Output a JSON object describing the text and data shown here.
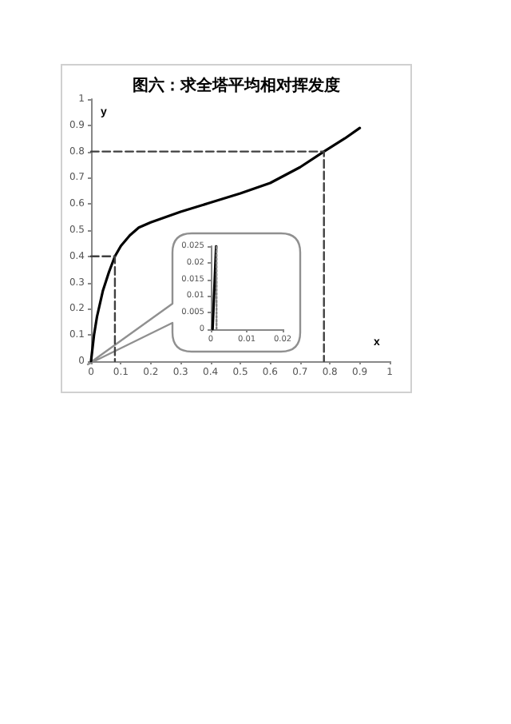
{
  "chart_data": [
    {
      "type": "line",
      "title": "图六：求全塔平均相对挥发度",
      "xlabel": "x",
      "ylabel": "y",
      "xlim": [
        0,
        1
      ],
      "ylim": [
        0,
        1
      ],
      "xticks": [
        0,
        0.1,
        0.2,
        0.3,
        0.4,
        0.5,
        0.6,
        0.7,
        0.8,
        0.9,
        1
      ],
      "yticks": [
        0,
        0.1,
        0.2,
        0.3,
        0.4,
        0.5,
        0.6,
        0.7,
        0.8,
        0.9,
        1
      ],
      "grid": false,
      "marker": "none",
      "series": [
        {
          "color": "#000000",
          "line_style": "solid",
          "x": [
            0,
            0.01,
            0.02,
            0.04,
            0.06,
            0.08,
            0.1,
            0.13,
            0.16,
            0.2,
            0.3,
            0.4,
            0.5,
            0.6,
            0.7,
            0.78,
            0.85,
            0.9
          ],
          "values": [
            0,
            0.1,
            0.17,
            0.27,
            0.34,
            0.4,
            0.44,
            0.48,
            0.51,
            0.53,
            0.57,
            0.605,
            0.64,
            0.68,
            0.74,
            0.8,
            0.85,
            0.89
          ]
        },
        {
          "color": "#404040",
          "line_style": "dashed",
          "x": [
            0,
            0.78,
            0.78
          ],
          "values": [
            0.8,
            0.8,
            0
          ]
        },
        {
          "color": "#404040",
          "line_style": "dashed",
          "x": [
            0,
            0.08,
            0.08
          ],
          "values": [
            0.4,
            0.4,
            0
          ]
        }
      ]
    },
    {
      "type": "line",
      "xlim": [
        0,
        0.02
      ],
      "ylim": [
        0,
        0.025
      ],
      "xticks": [
        0,
        0.01,
        0.02
      ],
      "yticks": [
        0,
        0.005,
        0.01,
        0.015,
        0.02,
        0.025
      ],
      "grid": false,
      "marker": "none",
      "series": [
        {
          "color": "#000000",
          "line_style": "solid",
          "x": [
            0.0005,
            0.0015
          ],
          "values": [
            0,
            0.025
          ]
        },
        {
          "color": "#808080",
          "line_style": "dotted",
          "x": [
            0.0016,
            0.0016
          ],
          "values": [
            0,
            0.025
          ]
        }
      ]
    }
  ]
}
